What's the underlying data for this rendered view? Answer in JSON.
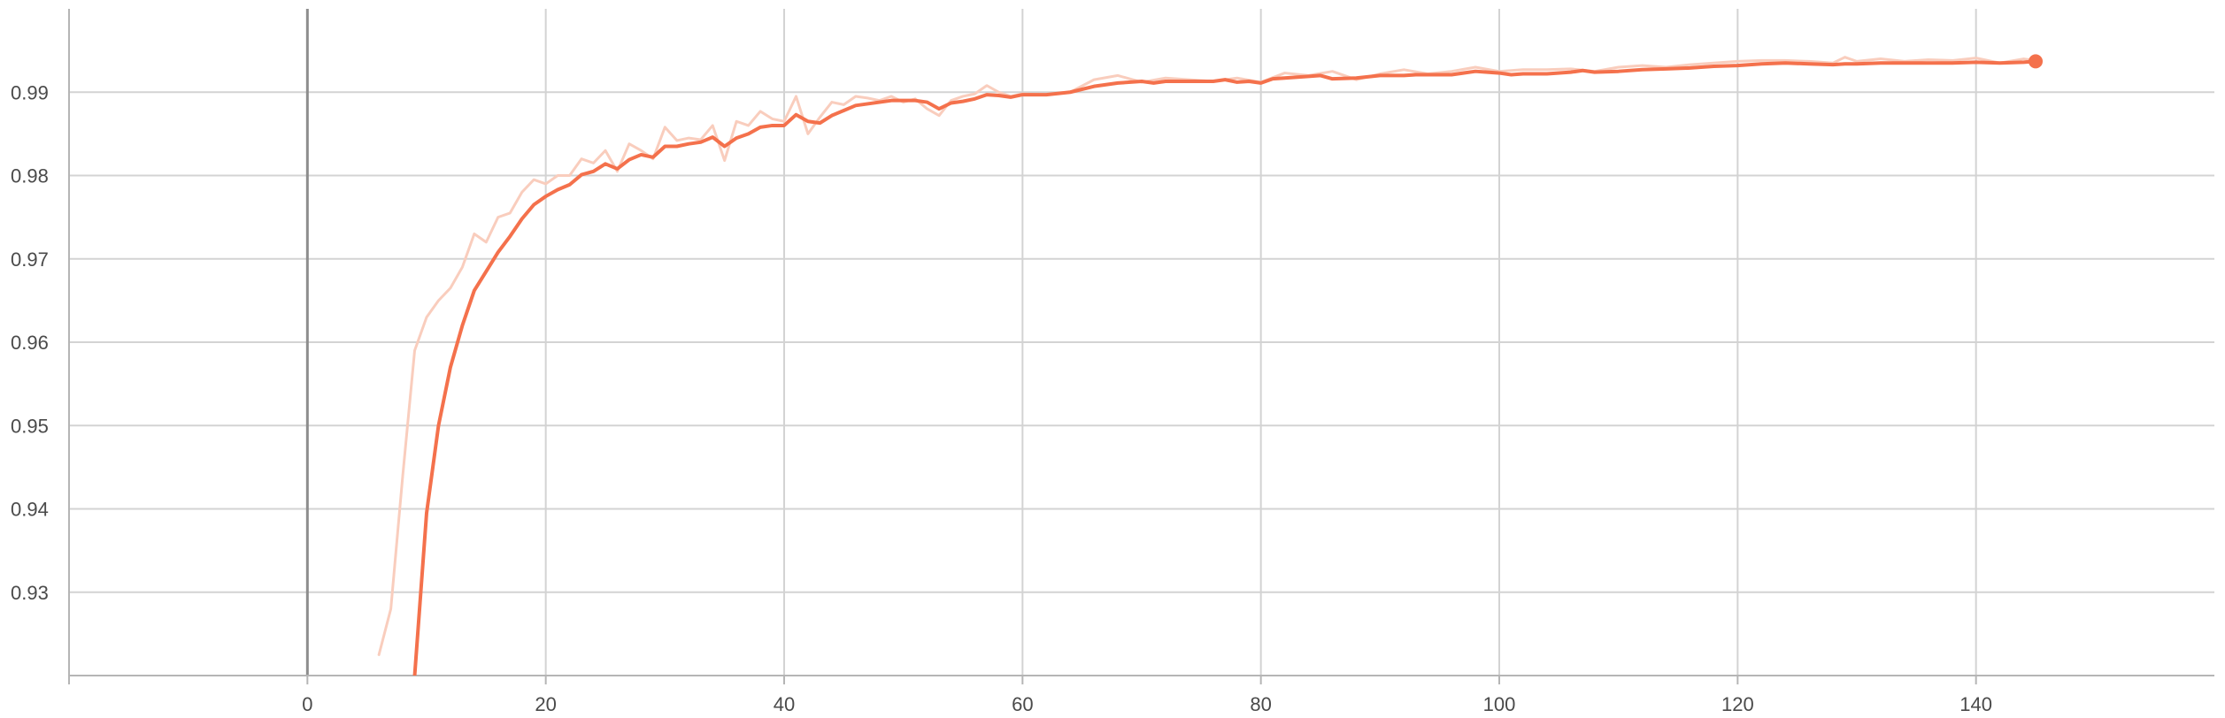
{
  "chart_data": {
    "type": "line",
    "title": "",
    "xlabel": "",
    "ylabel": "",
    "xlim": [
      -20,
      160
    ],
    "ylim": [
      0.92,
      1.0
    ],
    "x_ticks": [
      0,
      20,
      40,
      60,
      80,
      100,
      120,
      140
    ],
    "y_ticks": [
      0.93,
      0.94,
      0.95,
      0.96,
      0.97,
      0.98,
      0.99
    ],
    "x_tick_labels": [
      "0",
      "20",
      "40",
      "60",
      "80",
      "100",
      "120",
      "140"
    ],
    "y_tick_labels": [
      "0.93",
      "0.94",
      "0.95",
      "0.96",
      "0.97",
      "0.98",
      "0.99"
    ],
    "grid": true,
    "colors": {
      "smoothed": "#f4714c",
      "raw": "#f9cdbd"
    },
    "series": [
      {
        "role": "raw",
        "x": [
          6,
          7,
          8,
          9,
          10,
          11,
          12,
          13,
          14,
          15,
          16,
          17,
          18,
          19,
          20,
          21,
          22,
          23,
          24,
          25,
          26,
          27,
          28,
          29,
          30,
          31,
          32,
          33,
          34,
          35,
          36,
          37,
          38,
          39,
          40,
          41,
          42,
          43,
          44,
          45,
          46,
          47,
          48,
          49,
          50,
          51,
          52,
          53,
          54,
          55,
          56,
          57,
          58,
          59,
          60,
          62,
          64,
          66,
          68,
          70,
          72,
          74,
          76,
          78,
          80,
          82,
          84,
          86,
          88,
          90,
          92,
          94,
          96,
          98,
          100,
          102,
          104,
          106,
          108,
          110,
          112,
          114,
          116,
          118,
          120,
          122,
          124,
          126,
          128,
          129,
          130,
          132,
          134,
          136,
          138,
          140,
          142,
          144,
          145
        ],
        "values": [
          0.9225,
          0.928,
          0.944,
          0.959,
          0.963,
          0.965,
          0.9665,
          0.969,
          0.973,
          0.972,
          0.975,
          0.9755,
          0.978,
          0.9795,
          0.979,
          0.98,
          0.98,
          0.982,
          0.9815,
          0.983,
          0.9805,
          0.9838,
          0.983,
          0.982,
          0.9858,
          0.9842,
          0.9845,
          0.9843,
          0.986,
          0.9818,
          0.9865,
          0.986,
          0.9877,
          0.9868,
          0.9865,
          0.9895,
          0.985,
          0.987,
          0.9888,
          0.9885,
          0.9895,
          0.9893,
          0.989,
          0.9895,
          0.9888,
          0.9892,
          0.988,
          0.9872,
          0.989,
          0.9895,
          0.9898,
          0.9908,
          0.99,
          0.9895,
          0.9898,
          0.9897,
          0.99,
          0.9915,
          0.992,
          0.9912,
          0.9917,
          0.9915,
          0.9913,
          0.9917,
          0.9912,
          0.9923,
          0.992,
          0.9925,
          0.9915,
          0.9922,
          0.9927,
          0.9922,
          0.9925,
          0.993,
          0.9925,
          0.9927,
          0.9927,
          0.9928,
          0.9925,
          0.993,
          0.9932,
          0.993,
          0.9933,
          0.9935,
          0.9937,
          0.9938,
          0.9938,
          0.9937,
          0.9935,
          0.9942,
          0.9937,
          0.994,
          0.9937,
          0.9939,
          0.9938,
          0.9941,
          0.9935,
          0.994,
          0.9938
        ]
      },
      {
        "role": "smoothed",
        "x": [
          9,
          10,
          11,
          12,
          13,
          14,
          15,
          16,
          17,
          18,
          19,
          20,
          21,
          22,
          23,
          24,
          25,
          26,
          27,
          28,
          29,
          30,
          31,
          32,
          33,
          34,
          35,
          36,
          37,
          38,
          39,
          40,
          41,
          42,
          43,
          44,
          45,
          46,
          47,
          48,
          49,
          50,
          51,
          52,
          53,
          54,
          55,
          56,
          57,
          58,
          59,
          60,
          62,
          64,
          66,
          67,
          68,
          70,
          71,
          72,
          74,
          76,
          77,
          78,
          79,
          80,
          81,
          82,
          84,
          85,
          86,
          88,
          90,
          92,
          93,
          94,
          96,
          98,
          99,
          100,
          101,
          102,
          104,
          106,
          107,
          108,
          110,
          112,
          114,
          116,
          118,
          120,
          122,
          124,
          126,
          128,
          129,
          130,
          132,
          134,
          136,
          137,
          138,
          140,
          142,
          144,
          145
        ],
        "values": [
          0.92,
          0.9395,
          0.95,
          0.957,
          0.962,
          0.9662,
          0.9685,
          0.9708,
          0.9727,
          0.9748,
          0.9765,
          0.9775,
          0.9783,
          0.9789,
          0.9801,
          0.9805,
          0.9814,
          0.9808,
          0.9819,
          0.9825,
          0.9822,
          0.9835,
          0.9835,
          0.9838,
          0.984,
          0.9846,
          0.9835,
          0.9845,
          0.985,
          0.9858,
          0.986,
          0.986,
          0.9873,
          0.9865,
          0.9863,
          0.9872,
          0.9878,
          0.9884,
          0.9886,
          0.9888,
          0.989,
          0.989,
          0.989,
          0.9888,
          0.988,
          0.9887,
          0.9889,
          0.9892,
          0.9897,
          0.9896,
          0.9894,
          0.9897,
          0.9897,
          0.99,
          0.9907,
          0.9909,
          0.9911,
          0.9913,
          0.9911,
          0.9913,
          0.9913,
          0.9913,
          0.9915,
          0.9912,
          0.9913,
          0.9911,
          0.9916,
          0.9917,
          0.9919,
          0.992,
          0.9916,
          0.9917,
          0.992,
          0.992,
          0.9921,
          0.9921,
          0.9921,
          0.9925,
          0.9924,
          0.9923,
          0.9921,
          0.9922,
          0.9922,
          0.9924,
          0.9926,
          0.9924,
          0.9925,
          0.9927,
          0.9928,
          0.9929,
          0.9931,
          0.9932,
          0.9934,
          0.9935,
          0.9934,
          0.9933,
          0.9934,
          0.9934,
          0.9935,
          0.9935,
          0.9935,
          0.9935,
          0.9935,
          0.9936,
          0.9935,
          0.9936,
          0.9937
        ]
      }
    ]
  }
}
